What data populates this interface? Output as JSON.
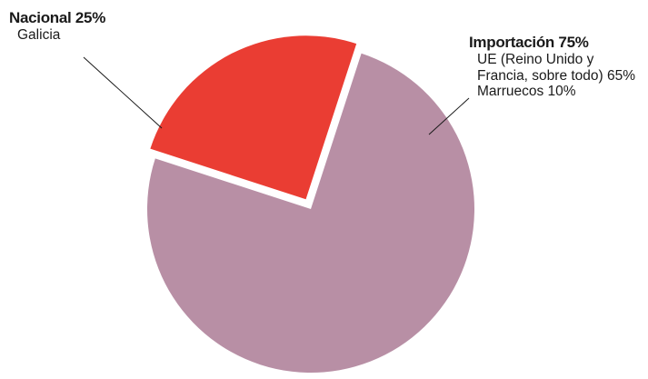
{
  "chart_data": {
    "type": "pie",
    "slices": [
      {
        "name": "Importación",
        "value": 75,
        "color": "#b88fa5",
        "exploded": false,
        "label": {
          "title": "Importación 75%",
          "lines": [
            "UE (Reino Unido y",
            "Francia, sobre todo) 65%",
            "Marruecos 10%"
          ]
        }
      },
      {
        "name": "Nacional",
        "value": 25,
        "color": "#ea3d33",
        "exploded": true,
        "label": {
          "title": "Nacional 25%",
          "lines": [
            "Galicia"
          ]
        }
      }
    ],
    "legend": "callout-labels"
  }
}
